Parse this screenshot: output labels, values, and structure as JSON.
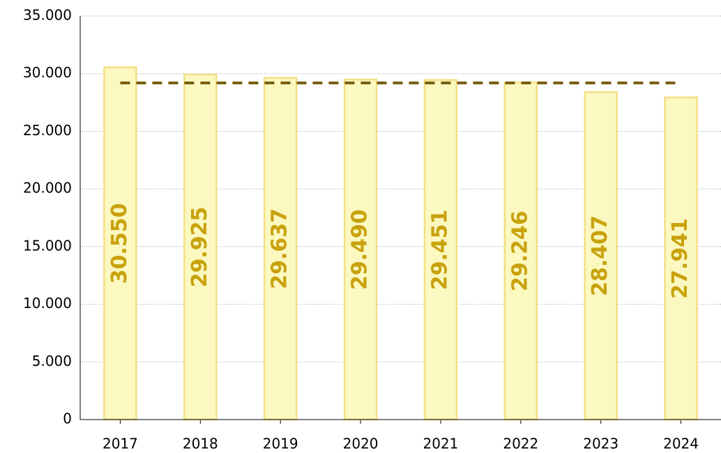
{
  "chart_data": {
    "type": "bar",
    "categories": [
      "2017",
      "2018",
      "2019",
      "2020",
      "2021",
      "2022",
      "2023",
      "2024"
    ],
    "values": [
      30550,
      29925,
      29637,
      29490,
      29451,
      29246,
      28407,
      27941
    ],
    "value_labels": [
      "30.550",
      "29.925",
      "29.637",
      "29.490",
      "29.451",
      "29.246",
      "28.407",
      "27.941"
    ],
    "color": "#fbf8c0",
    "edge_color": "#f3df85",
    "label_color": "#c9a20c",
    "reference_line": {
      "value": 29200,
      "color": "#7a5f12",
      "style": "dashed"
    },
    "ylim": [
      0,
      35000
    ],
    "yticks": [
      {
        "value": 0,
        "label": "0"
      },
      {
        "value": 5000,
        "label": "5.000"
      },
      {
        "value": 10000,
        "label": "10.000"
      },
      {
        "value": 15000,
        "label": "15.000"
      },
      {
        "value": 20000,
        "label": "20.000"
      },
      {
        "value": 25000,
        "label": "25.000"
      },
      {
        "value": 30000,
        "label": "30.000"
      },
      {
        "value": 35000,
        "label": "35.000"
      }
    ],
    "grid": true
  }
}
